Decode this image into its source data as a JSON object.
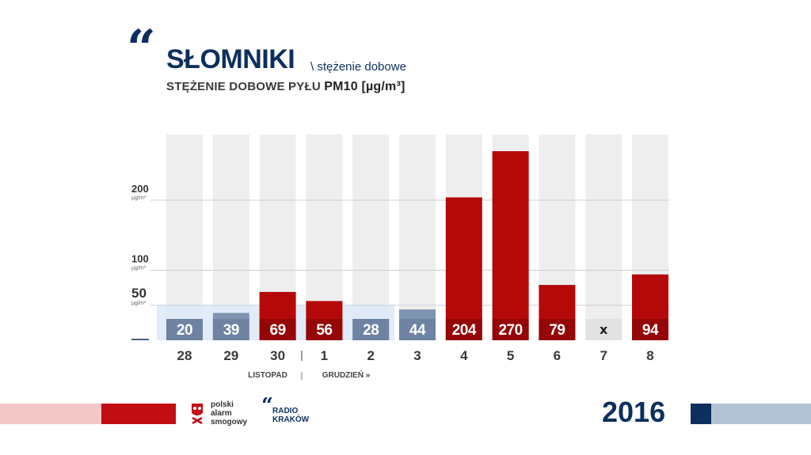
{
  "header": {
    "quote": "“",
    "title": "SŁOMNIKI",
    "subtitle_inline": "\\ stężenie dobowe",
    "subtitle_prefix": "STĘŻENIE DOBOWE PYŁU ",
    "subtitle_pm": "PM10 [µg/m³]"
  },
  "chart_data": {
    "type": "bar",
    "categories": [
      "28",
      "29",
      "30",
      "1",
      "2",
      "3",
      "4",
      "5",
      "6",
      "7",
      "8"
    ],
    "series": [
      {
        "values": [
          20,
          39,
          69,
          56,
          28,
          44,
          204,
          270,
          79,
          null,
          94
        ]
      }
    ],
    "value_labels": [
      "20",
      "39",
      "69",
      "56",
      "28",
      "44",
      "204",
      "270",
      "79",
      "x",
      "94"
    ],
    "ylim": [
      0,
      300
    ],
    "gridlines": [
      {
        "value": 200,
        "label": "200",
        "unit": "µg/m³"
      },
      {
        "value": 100,
        "label": "100",
        "unit": "µg/m³"
      },
      {
        "value": 50,
        "label": "50",
        "unit": "µg/m³"
      }
    ],
    "month_labels": [
      "LISTOPAD",
      "GRUDZIEŃ »"
    ],
    "month_separator": "|",
    "colors": {
      "above_limit": "#b50808",
      "above_limit_dark": "#7a0606",
      "below_limit": "#7f94b1",
      "below_limit_dark": "#5f7594",
      "background_column": "#eeeeee",
      "limit_zone": "#dde9f7"
    }
  },
  "footer": {
    "pas_lines": [
      "polski",
      "alarm",
      "smogowy"
    ],
    "rk_mark": "“",
    "rk_lines": [
      "RADIO",
      "KRAKÓW"
    ],
    "year": "2016"
  }
}
